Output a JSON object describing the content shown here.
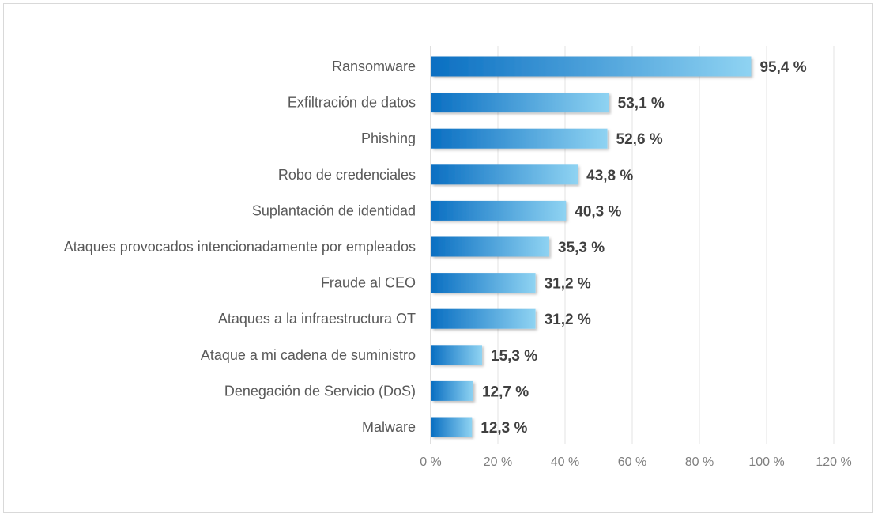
{
  "chart_data": {
    "type": "bar",
    "orientation": "horizontal",
    "title": "",
    "xlabel": "",
    "ylabel": "",
    "categories": [
      "Ransomware",
      "Exfiltración de datos",
      "Phishing",
      "Robo de credenciales",
      "Suplantación de identidad",
      "Ataques provocados intencionadamente por empleados",
      "Fraude al CEO",
      "Ataques a la infraestructura OT",
      "Ataque a mi cadena de suministro",
      "Denegación de Servicio (DoS)",
      "Malware"
    ],
    "values": [
      95.4,
      53.1,
      52.6,
      43.8,
      40.3,
      35.3,
      31.2,
      31.2,
      15.3,
      12.7,
      12.3
    ],
    "value_labels": [
      "95,4 %",
      "53,1 %",
      "52,6 %",
      "43,8 %",
      "40,3 %",
      "35,3 %",
      "31,2 %",
      "31,2 %",
      "15,3 %",
      "12,7 %",
      "12,3 %"
    ],
    "xlim": [
      0,
      120
    ],
    "xticks": [
      0,
      20,
      40,
      60,
      80,
      100,
      120
    ],
    "xtick_labels": [
      "0 %",
      "20 %",
      "40 %",
      "60 %",
      "80 %",
      "100 %",
      "120 %"
    ],
    "grid": "vertical",
    "legend": "none",
    "colors": {
      "bar_start": "#0a6fc2",
      "bar_end": "#8fd3f2",
      "grid": "#e3e3e3",
      "axis": "#bfbfbf"
    }
  }
}
